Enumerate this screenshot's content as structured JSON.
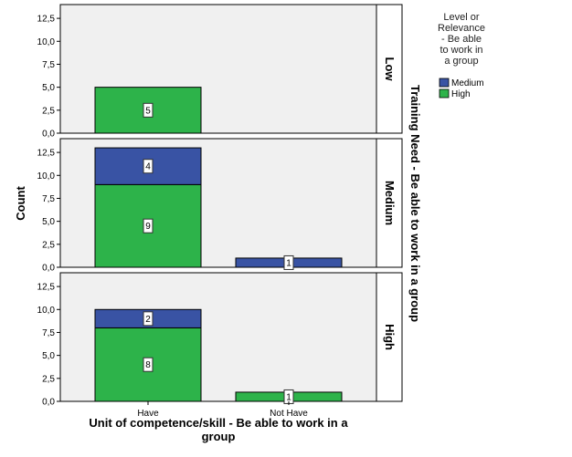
{
  "chart_data": {
    "type": "bar",
    "stacked": true,
    "xlabel": "Unit of competence/skill - Be able to work in a group",
    "ylabel": "Count",
    "facet_title": "Training Need - Be able to work in a group",
    "categories": [
      "Have",
      "Not Have"
    ],
    "ylim": [
      0,
      14
    ],
    "yticks": [
      "0,0",
      "2,5",
      "5,0",
      "7,5",
      "10,0",
      "12,5"
    ],
    "ytick_values": [
      0,
      2.5,
      5,
      7.5,
      10,
      12.5
    ],
    "legend": {
      "title": "Level or Relevance - Be able to work in a group",
      "title_lines": [
        "Level or",
        "Relevance",
        "- Be able",
        "to work in",
        "a group"
      ],
      "placement": "top-right",
      "entries": [
        {
          "name": "Medium",
          "color": "#3953a4"
        },
        {
          "name": "High",
          "color": "#2db34a"
        }
      ]
    },
    "colors": {
      "Medium": "#3953a4",
      "High": "#2db34a",
      "panel_bg": "#f0f0f0"
    },
    "panels": [
      {
        "facet": "Low",
        "series": [
          {
            "name": "High",
            "values": [
              5,
              0
            ]
          },
          {
            "name": "Medium",
            "values": [
              0,
              0
            ]
          }
        ]
      },
      {
        "facet": "Medium",
        "series": [
          {
            "name": "High",
            "values": [
              9,
              0
            ]
          },
          {
            "name": "Medium",
            "values": [
              4,
              1
            ]
          }
        ]
      },
      {
        "facet": "High",
        "series": [
          {
            "name": "High",
            "values": [
              8,
              1
            ]
          },
          {
            "name": "Medium",
            "values": [
              2,
              0
            ]
          }
        ]
      }
    ]
  }
}
